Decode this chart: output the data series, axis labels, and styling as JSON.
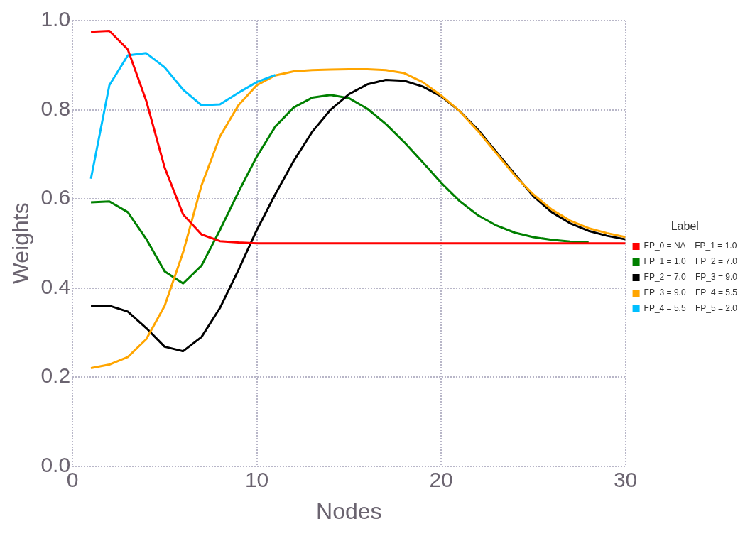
{
  "chart_data": {
    "type": "line",
    "xlabel": "Nodes",
    "ylabel": "Weights",
    "legend_title": "Label",
    "legend": "right",
    "grid": true,
    "line_style": "solid",
    "marker": "none",
    "x": [
      1,
      2,
      3,
      4,
      5,
      6,
      7,
      8,
      9,
      10,
      11,
      12,
      13,
      14,
      15,
      16,
      17,
      18,
      19,
      20,
      21,
      22,
      23,
      24,
      25,
      26,
      27,
      28,
      29,
      30
    ],
    "xlim": [
      0,
      30
    ],
    "xticks": [
      0,
      10,
      20,
      30
    ],
    "ylim": [
      0,
      1
    ],
    "yticks": [
      {
        "value": 0,
        "label": "0.0"
      },
      {
        "value": 0.2,
        "label": "0.2"
      },
      {
        "value": 0.4,
        "label": "0.4"
      },
      {
        "value": 0.6,
        "label": "0.6"
      },
      {
        "value": 0.8,
        "label": "0.8"
      },
      {
        "value": 1,
        "label": "1.0"
      }
    ],
    "series": [
      {
        "name": "FP_0 = NA    FP_1 = 1.0",
        "color": "#ff0000",
        "values": [
          0.975,
          0.977,
          0.935,
          0.82,
          0.67,
          0.565,
          0.52,
          0.505,
          0.502,
          0.5,
          0.5,
          0.5,
          0.5,
          0.5,
          0.5,
          0.5,
          0.5,
          0.5,
          0.5,
          0.5,
          0.5,
          0.5,
          0.5,
          0.5,
          0.5,
          0.5,
          0.5,
          0.5,
          0.5,
          0.5
        ]
      },
      {
        "name": "FP_1 = 1.0    FP_2 = 7.0",
        "color": "#008000",
        "values": [
          0.592,
          0.594,
          0.57,
          0.51,
          0.437,
          0.41,
          0.45,
          0.53,
          0.615,
          0.695,
          0.762,
          0.805,
          0.827,
          0.833,
          0.826,
          0.802,
          0.768,
          0.727,
          0.682,
          0.636,
          0.595,
          0.563,
          0.54,
          0.524,
          0.514,
          0.508,
          0.504,
          0.502,
          null,
          null
        ]
      },
      {
        "name": "FP_2 = 7.0    FP_3 = 9.0",
        "color": "#000000",
        "values": [
          0.36,
          0.36,
          0.347,
          0.31,
          0.268,
          0.258,
          0.29,
          0.355,
          0.44,
          0.53,
          0.61,
          0.685,
          0.75,
          0.8,
          0.835,
          0.857,
          0.867,
          0.865,
          0.852,
          0.83,
          0.797,
          0.755,
          0.705,
          0.655,
          0.606,
          0.57,
          0.545,
          0.528,
          0.517,
          0.509
        ]
      },
      {
        "name": "FP_3 = 9.0    FP_4 = 5.5",
        "color": "#ffa500",
        "values": [
          0.22,
          0.228,
          0.245,
          0.285,
          0.36,
          0.48,
          0.63,
          0.74,
          0.81,
          0.855,
          0.877,
          0.886,
          0.889,
          0.89,
          0.891,
          0.891,
          0.889,
          0.882,
          0.862,
          0.832,
          0.797,
          0.752,
          0.702,
          0.652,
          0.61,
          0.576,
          0.551,
          0.534,
          0.523,
          0.514
        ]
      },
      {
        "name": "FP_4 = 5.5    FP_5 = 2.0",
        "color": "#00bfff",
        "values": [
          0.645,
          0.855,
          0.922,
          0.927,
          0.895,
          0.845,
          0.81,
          0.812,
          0.838,
          0.862,
          0.878,
          null,
          null,
          null,
          null,
          null,
          null,
          null,
          null,
          null,
          null,
          null,
          null,
          null,
          null,
          null,
          null,
          null,
          null,
          null
        ]
      }
    ]
  }
}
